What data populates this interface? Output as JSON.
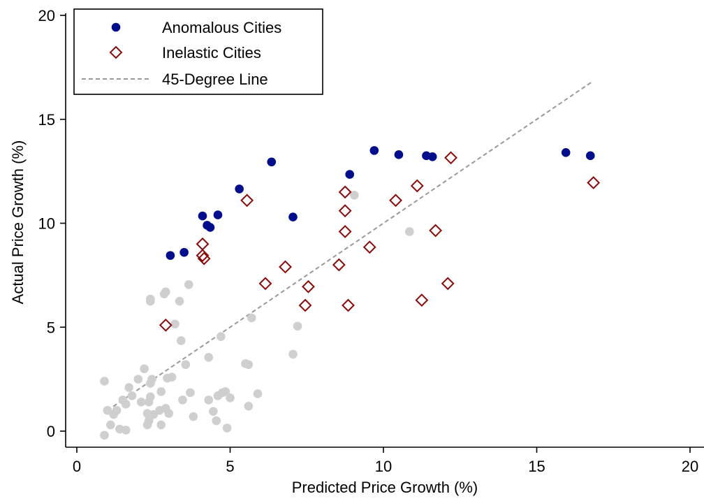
{
  "chart_data": {
    "type": "scatter",
    "xlabel": "Predicted Price Growth (%)",
    "ylabel": "Actual Price Growth (%)",
    "xlim": [
      0,
      20
    ],
    "ylim": [
      -0.5,
      20
    ],
    "xticks": [
      0,
      5,
      10,
      15,
      20
    ],
    "yticks": [
      0,
      5,
      10,
      15,
      20
    ],
    "xtick_labels": [
      "0",
      "5",
      "10",
      "15",
      "20"
    ],
    "ytick_labels": [
      "0",
      "5",
      "10",
      "15",
      "20"
    ],
    "grid": false,
    "legend_position": "top-left",
    "legend": [
      {
        "label": "Anomalous Cities",
        "marker": "filled-circle",
        "color": "#000e8c"
      },
      {
        "label": "Inelastic Cities",
        "marker": "hollow-diamond",
        "color": "#8b0a0a"
      },
      {
        "label": "45-Degree Line",
        "marker": "dashed-line",
        "color": "#999999"
      }
    ],
    "series": [
      {
        "name": "Anomalous Cities",
        "marker": "filled-circle",
        "color": "#000e8c",
        "points": [
          [
            3.05,
            8.45
          ],
          [
            3.5,
            8.6
          ],
          [
            4.1,
            10.35
          ],
          [
            4.25,
            9.9
          ],
          [
            4.35,
            9.8
          ],
          [
            4.6,
            10.4
          ],
          [
            5.3,
            11.65
          ],
          [
            6.35,
            12.95
          ],
          [
            7.05,
            10.3
          ],
          [
            8.9,
            12.35
          ],
          [
            9.7,
            13.5
          ],
          [
            10.5,
            13.3
          ],
          [
            11.4,
            13.25
          ],
          [
            11.6,
            13.2
          ],
          [
            15.95,
            13.4
          ],
          [
            16.75,
            13.25
          ]
        ]
      },
      {
        "name": "Inelastic Cities",
        "marker": "hollow-diamond",
        "color": "#8b0a0a",
        "points": [
          [
            2.9,
            5.1
          ],
          [
            4.1,
            9.0
          ],
          [
            4.1,
            8.45
          ],
          [
            4.15,
            8.3
          ],
          [
            5.55,
            11.1
          ],
          [
            6.15,
            7.1
          ],
          [
            6.8,
            7.9
          ],
          [
            7.45,
            6.05
          ],
          [
            7.55,
            6.95
          ],
          [
            8.55,
            8.0
          ],
          [
            8.75,
            11.5
          ],
          [
            8.75,
            10.6
          ],
          [
            8.75,
            9.6
          ],
          [
            8.85,
            6.05
          ],
          [
            9.55,
            8.85
          ],
          [
            10.4,
            11.1
          ],
          [
            11.1,
            11.8
          ],
          [
            11.25,
            6.3
          ],
          [
            11.7,
            9.65
          ],
          [
            12.1,
            7.1
          ],
          [
            12.2,
            13.15
          ],
          [
            16.85,
            11.95
          ]
        ]
      },
      {
        "name": "",
        "marker": "filled-circle",
        "color": "#cfcfcf",
        "points": [
          [
            0.9,
            2.4
          ],
          [
            0.9,
            -0.2
          ],
          [
            1.0,
            1.0
          ],
          [
            1.1,
            0.3
          ],
          [
            1.2,
            0.8
          ],
          [
            1.3,
            1.0
          ],
          [
            1.4,
            0.1
          ],
          [
            1.5,
            1.5
          ],
          [
            1.6,
            0.05
          ],
          [
            1.6,
            1.3
          ],
          [
            1.7,
            2.1
          ],
          [
            1.8,
            1.7
          ],
          [
            2.0,
            2.5
          ],
          [
            2.1,
            1.4
          ],
          [
            2.2,
            3.0
          ],
          [
            2.3,
            0.3
          ],
          [
            2.3,
            0.85
          ],
          [
            2.35,
            1.4
          ],
          [
            2.35,
            0.5
          ],
          [
            2.4,
            6.35
          ],
          [
            2.4,
            6.25
          ],
          [
            2.4,
            2.3
          ],
          [
            2.4,
            1.65
          ],
          [
            2.45,
            2.5
          ],
          [
            2.5,
            0.8
          ],
          [
            2.7,
            1.0
          ],
          [
            2.75,
            1.9
          ],
          [
            2.75,
            0.3
          ],
          [
            2.85,
            6.6
          ],
          [
            2.9,
            6.7
          ],
          [
            2.9,
            1.1
          ],
          [
            2.95,
            2.55
          ],
          [
            3.0,
            0.85
          ],
          [
            3.1,
            2.6
          ],
          [
            3.2,
            5.15
          ],
          [
            3.35,
            6.25
          ],
          [
            3.4,
            4.35
          ],
          [
            3.45,
            1.5
          ],
          [
            3.55,
            3.2
          ],
          [
            3.65,
            7.05
          ],
          [
            3.7,
            1.85
          ],
          [
            3.8,
            0.7
          ],
          [
            4.3,
            3.55
          ],
          [
            4.3,
            1.5
          ],
          [
            4.45,
            0.95
          ],
          [
            4.55,
            0.5
          ],
          [
            4.6,
            1.7
          ],
          [
            4.7,
            4.55
          ],
          [
            4.75,
            1.85
          ],
          [
            4.85,
            1.9
          ],
          [
            4.9,
            0.15
          ],
          [
            5.0,
            1.6
          ],
          [
            5.5,
            3.25
          ],
          [
            5.6,
            3.2
          ],
          [
            5.6,
            1.2
          ],
          [
            5.7,
            5.45
          ],
          [
            5.9,
            1.8
          ],
          [
            7.05,
            3.7
          ],
          [
            7.2,
            5.05
          ],
          [
            9.05,
            11.35
          ],
          [
            10.85,
            9.6
          ]
        ]
      }
    ],
    "reference_line": {
      "name": "45-Degree Line",
      "x": [
        1.0,
        16.8
      ],
      "y": [
        1.0,
        16.8
      ],
      "style": "dashed"
    }
  }
}
